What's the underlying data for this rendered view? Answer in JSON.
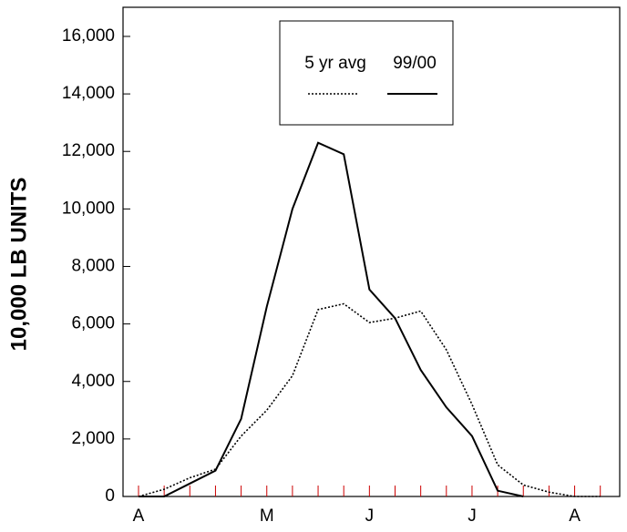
{
  "chart_data": {
    "type": "line",
    "y_label": "10,000 LB UNITS",
    "categories": [
      "A",
      null,
      null,
      null,
      null,
      "M",
      null,
      null,
      null,
      "J",
      null,
      null,
      null,
      "J",
      null,
      null,
      null,
      "A",
      null
    ],
    "series": [
      {
        "name": "5 yr avg",
        "color": "#000000",
        "dash": "dotted",
        "values": [
          0,
          250,
          650,
          950,
          2100,
          3000,
          4200,
          6500,
          6700,
          6050,
          6200,
          6450,
          5100,
          3200,
          1100,
          400,
          150,
          0,
          0
        ]
      },
      {
        "name": "99/00",
        "color": "#000000",
        "dash": "solid",
        "values": [
          0,
          0,
          450,
          900,
          2700,
          6600,
          10000,
          12300,
          11900,
          7200,
          6200,
          4400,
          3100,
          2100,
          200,
          0,
          null,
          null,
          null
        ]
      }
    ],
    "ylim": [
      0,
      17000
    ],
    "yticks": [
      0,
      {
        "value": 2000,
        "label": "2,000"
      },
      {
        "value": 4000,
        "label": "4,000"
      },
      {
        "value": 6000,
        "label": "6,000"
      },
      {
        "value": 8000,
        "label": "8,000"
      },
      {
        "value": 10000,
        "label": "10,000"
      },
      {
        "value": 12000,
        "label": "12,000"
      },
      {
        "value": 14000,
        "label": "14,000"
      },
      {
        "value": 16000,
        "label": "16,000"
      }
    ],
    "x_tick_color": "#cc0000"
  }
}
